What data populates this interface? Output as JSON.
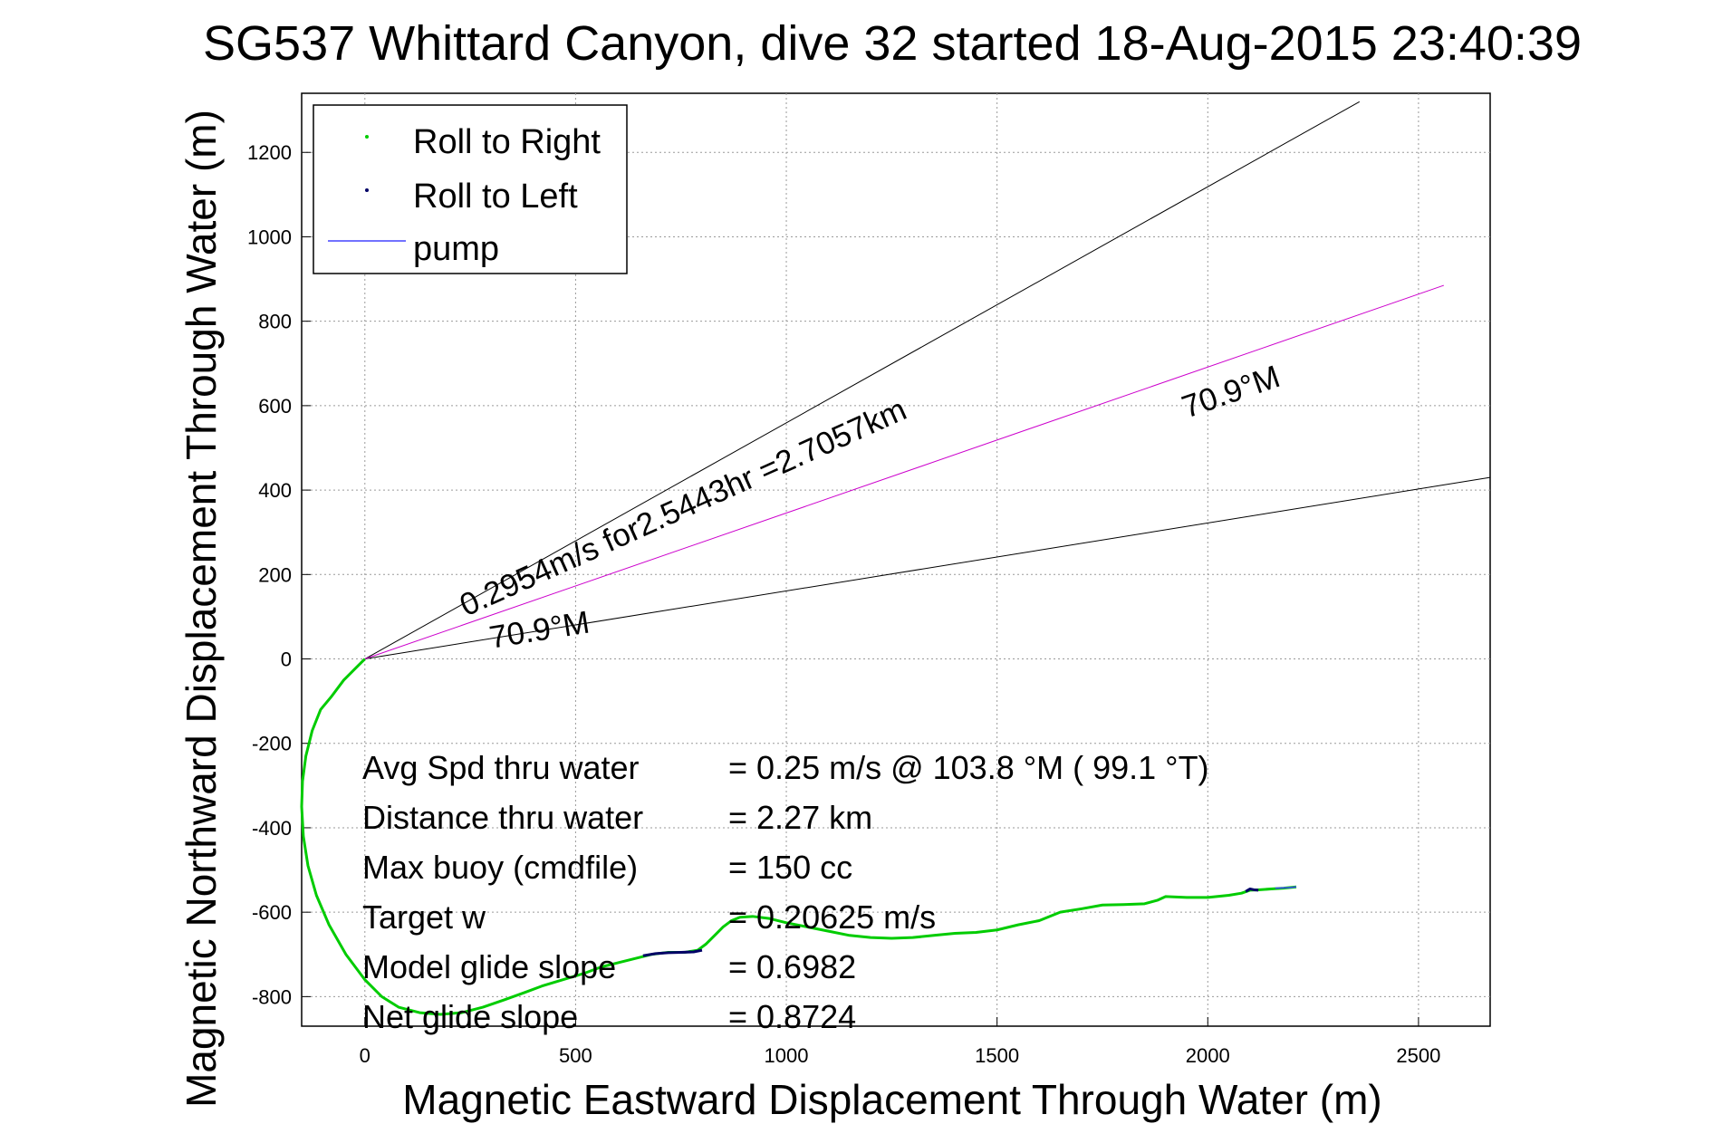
{
  "chart_data": {
    "type": "line",
    "title": "SG537 Whittard Canyon, dive 32 started 18-Aug-2015 23:40:39",
    "xlabel": "Magnetic Eastward Displacement Through Water (m)",
    "ylabel": "Magnetic Northward Displacement Through Water (m)",
    "xlim": [
      -150,
      2670
    ],
    "ylim": [
      -870,
      1340
    ],
    "xticks": [
      0,
      500,
      1000,
      1500,
      2000,
      2500
    ],
    "yticks": [
      -800,
      -600,
      -400,
      -200,
      0,
      200,
      400,
      600,
      800,
      1000,
      1200
    ],
    "grid": true,
    "legend_position": "top-left",
    "legend": [
      "Roll to Right",
      "Roll to Left",
      "pump"
    ],
    "colors": {
      "roll_right": "#00cc00",
      "roll_left": "#000066",
      "pump": "#4444ff",
      "heading_line": "#cc00cc",
      "bound_line": "#000000"
    },
    "series": [
      {
        "name": "Roll to Right",
        "x": [
          0,
          -20,
          -50,
          -80,
          -105,
          -125,
          -140,
          -148,
          -150,
          -146,
          -135,
          -115,
          -85,
          -45,
          0,
          40,
          80,
          130,
          180,
          230,
          280,
          330,
          380,
          420,
          470,
          520,
          560,
          600,
          640,
          680,
          720,
          760,
          790,
          810,
          830,
          850,
          870,
          890,
          920,
          960,
          1000,
          1050,
          1100,
          1150,
          1200,
          1250,
          1300,
          1350,
          1400,
          1450,
          1500,
          1550,
          1600,
          1650,
          1700,
          1750,
          1800,
          1850,
          1880,
          1900,
          1950,
          2000,
          2050,
          2080,
          2100,
          2120,
          2150,
          2180,
          2210
        ],
        "y": [
          0,
          -20,
          -50,
          -90,
          -120,
          -170,
          -230,
          -290,
          -350,
          -420,
          -490,
          -560,
          -630,
          -700,
          -760,
          -800,
          -825,
          -838,
          -842,
          -838,
          -825,
          -808,
          -790,
          -775,
          -760,
          -745,
          -730,
          -720,
          -710,
          -700,
          -695,
          -695,
          -690,
          -675,
          -655,
          -635,
          -620,
          -612,
          -610,
          -615,
          -625,
          -635,
          -645,
          -655,
          -660,
          -662,
          -660,
          -655,
          -650,
          -648,
          -642,
          -630,
          -620,
          -600,
          -592,
          -583,
          -582,
          -580,
          -572,
          -563,
          -565,
          -565,
          -560,
          -555,
          -548,
          -547,
          -545,
          -543,
          -540
        ]
      },
      {
        "name": "Roll to Left",
        "x": [
          660,
          690,
          720,
          750,
          780,
          800,
          2090,
          2100,
          2110,
          2120
        ],
        "y": [
          -703,
          -698,
          -696,
          -695,
          -694,
          -690,
          -551,
          -545,
          -547,
          -548
        ]
      },
      {
        "name": "pump",
        "x": [
          2160,
          2190,
          2210
        ],
        "y": [
          -543,
          -542,
          -540
        ]
      }
    ],
    "reference_lines": {
      "heading_deg": 70.9,
      "upper_bound_end": [
        2360,
        1320
      ],
      "lower_bound_end": [
        2670,
        430
      ],
      "heading_end": [
        2560,
        885
      ]
    },
    "annotations": {
      "speed_distance": "0.2954m/s for2.5443hr =2.7057km",
      "heading_near": "70.9°M",
      "heading_far": "70.9°M"
    },
    "stats": [
      {
        "label": "Avg Spd thru water",
        "value": "=  0.25 m/s @ 103.8 °M ( 99.1 °T)"
      },
      {
        "label": "Distance thru water",
        "value": "=  2.27 km"
      },
      {
        "label": "Max buoy (cmdfile)",
        "value": "= 150 cc"
      },
      {
        "label": "Target w",
        "value": "= 0.20625 m/s"
      },
      {
        "label": "Model glide slope",
        "value": "= 0.6982"
      },
      {
        "label": "Net glide slope",
        "value": "= 0.8724"
      }
    ]
  }
}
